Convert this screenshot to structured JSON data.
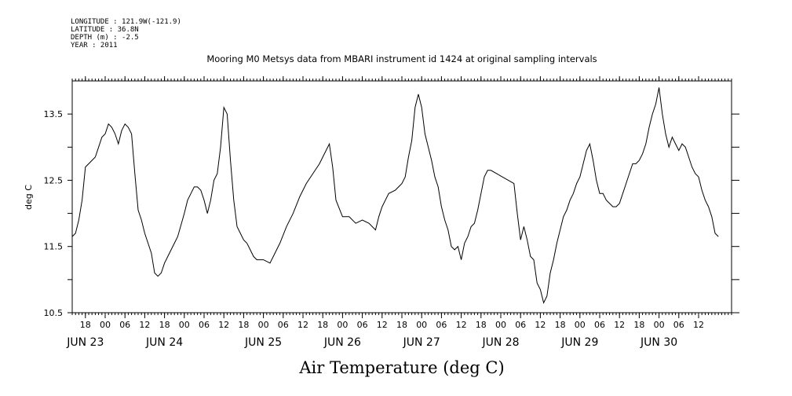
{
  "header": {
    "longitude": "LONGITUDE : 121.9W(-121.9)",
    "latitude": "LATITUDE : 36.8N",
    "depth": "DEPTH (m) : -2.5",
    "year": "YEAR : 2011"
  },
  "chart_data": {
    "type": "line",
    "title": "Mooring M0 Metsys data from MBARI instrument id 1424 at original sampling intervals",
    "xlabel": "Air Temperature (deg C)",
    "ylabel": "deg C",
    "ylim": [
      10.5,
      14.0
    ],
    "xlim": [
      "2011-06-22 14:00",
      "2011-06-30 22:00"
    ],
    "yticks": [
      {
        "value": 10.5,
        "label": "10.5"
      },
      {
        "value": 11.0,
        "label": ""
      },
      {
        "value": 11.5,
        "label": "11.5"
      },
      {
        "value": 12.0,
        "label": ""
      },
      {
        "value": 12.5,
        "label": "12.5"
      },
      {
        "value": 13.0,
        "label": ""
      },
      {
        "value": 13.5,
        "label": "13.5"
      }
    ],
    "hour_ticks": [
      {
        "t": "2011-06-22 18:00",
        "label": "18"
      },
      {
        "t": "2011-06-23 00:00",
        "label": "00"
      },
      {
        "t": "2011-06-23 06:00",
        "label": "06"
      },
      {
        "t": "2011-06-23 12:00",
        "label": "12"
      },
      {
        "t": "2011-06-23 18:00",
        "label": "18"
      },
      {
        "t": "2011-06-24 00:00",
        "label": "00"
      },
      {
        "t": "2011-06-24 06:00",
        "label": "06"
      },
      {
        "t": "2011-06-24 12:00",
        "label": "12"
      },
      {
        "t": "2011-06-24 18:00",
        "label": "18"
      },
      {
        "t": "2011-06-25 00:00",
        "label": "00"
      },
      {
        "t": "2011-06-25 06:00",
        "label": "06"
      },
      {
        "t": "2011-06-25 12:00",
        "label": "12"
      },
      {
        "t": "2011-06-25 18:00",
        "label": "18"
      },
      {
        "t": "2011-06-26 00:00",
        "label": "00"
      },
      {
        "t": "2011-06-26 06:00",
        "label": "06"
      },
      {
        "t": "2011-06-26 12:00",
        "label": "12"
      },
      {
        "t": "2011-06-26 18:00",
        "label": "18"
      },
      {
        "t": "2011-06-27 00:00",
        "label": "00"
      },
      {
        "t": "2011-06-27 06:00",
        "label": "06"
      },
      {
        "t": "2011-06-27 12:00",
        "label": "12"
      },
      {
        "t": "2011-06-27 18:00",
        "label": "18"
      },
      {
        "t": "2011-06-28 00:00",
        "label": "00"
      },
      {
        "t": "2011-06-28 06:00",
        "label": "06"
      },
      {
        "t": "2011-06-28 12:00",
        "label": "12"
      },
      {
        "t": "2011-06-28 18:00",
        "label": "18"
      },
      {
        "t": "2011-06-29 00:00",
        "label": "00"
      },
      {
        "t": "2011-06-29 06:00",
        "label": "06"
      },
      {
        "t": "2011-06-29 12:00",
        "label": "12"
      },
      {
        "t": "2011-06-29 18:00",
        "label": "18"
      },
      {
        "t": "2011-06-30 00:00",
        "label": "00"
      },
      {
        "t": "2011-06-30 06:00",
        "label": "06"
      },
      {
        "t": "2011-06-30 12:00",
        "label": "12"
      }
    ],
    "day_labels": [
      {
        "t": "2011-06-22 18:00",
        "label": "JUN 23"
      },
      {
        "t": "2011-06-23 18:00",
        "label": "JUN 24"
      },
      {
        "t": "2011-06-25 00:00",
        "label": "JUN 25"
      },
      {
        "t": "2011-06-26 00:00",
        "label": "JUN 26"
      },
      {
        "t": "2011-06-27 00:00",
        "label": "JUN 27"
      },
      {
        "t": "2011-06-28 00:00",
        "label": "JUN 28"
      },
      {
        "t": "2011-06-29 00:00",
        "label": "JUN 29"
      },
      {
        "t": "2011-06-30 00:00",
        "label": "JUN 30"
      }
    ],
    "series": [
      {
        "color": "#000000",
        "points": [
          [
            "2011-06-22 14:00",
            11.65
          ],
          [
            "2011-06-22 15:00",
            11.7
          ],
          [
            "2011-06-22 16:00",
            11.9
          ],
          [
            "2011-06-22 17:00",
            12.2
          ],
          [
            "2011-06-22 18:00",
            12.7
          ],
          [
            "2011-06-22 19:00",
            12.75
          ],
          [
            "2011-06-22 20:00",
            12.8
          ],
          [
            "2011-06-22 21:00",
            12.85
          ],
          [
            "2011-06-22 22:00",
            13.0
          ],
          [
            "2011-06-22 23:00",
            13.15
          ],
          [
            "2011-06-23 00:00",
            13.2
          ],
          [
            "2011-06-23 01:00",
            13.35
          ],
          [
            "2011-06-23 02:00",
            13.3
          ],
          [
            "2011-06-23 03:00",
            13.2
          ],
          [
            "2011-06-23 04:00",
            13.05
          ],
          [
            "2011-06-23 05:00",
            13.25
          ],
          [
            "2011-06-23 06:00",
            13.35
          ],
          [
            "2011-06-23 07:00",
            13.3
          ],
          [
            "2011-06-23 08:00",
            13.2
          ],
          [
            "2011-06-23 09:00",
            12.6
          ],
          [
            "2011-06-23 10:00",
            12.05
          ],
          [
            "2011-06-23 11:00",
            11.9
          ],
          [
            "2011-06-23 12:00",
            11.7
          ],
          [
            "2011-06-23 13:00",
            11.55
          ],
          [
            "2011-06-23 14:00",
            11.4
          ],
          [
            "2011-06-23 15:00",
            11.1
          ],
          [
            "2011-06-23 16:00",
            11.05
          ],
          [
            "2011-06-23 17:00",
            11.1
          ],
          [
            "2011-06-23 18:00",
            11.25
          ],
          [
            "2011-06-23 19:00",
            11.35
          ],
          [
            "2011-06-23 20:00",
            11.45
          ],
          [
            "2011-06-23 21:00",
            11.55
          ],
          [
            "2011-06-23 22:00",
            11.65
          ],
          [
            "2011-06-24 00:00",
            12.0
          ],
          [
            "2011-06-24 01:00",
            12.2
          ],
          [
            "2011-06-24 02:00",
            12.3
          ],
          [
            "2011-06-24 03:00",
            12.4
          ],
          [
            "2011-06-24 04:00",
            12.4
          ],
          [
            "2011-06-24 05:00",
            12.35
          ],
          [
            "2011-06-24 06:00",
            12.2
          ],
          [
            "2011-06-24 07:00",
            12.0
          ],
          [
            "2011-06-24 08:00",
            12.2
          ],
          [
            "2011-06-24 09:00",
            12.5
          ],
          [
            "2011-06-24 10:00",
            12.6
          ],
          [
            "2011-06-24 11:00",
            13.0
          ],
          [
            "2011-06-24 12:00",
            13.6
          ],
          [
            "2011-06-24 13:00",
            13.5
          ],
          [
            "2011-06-24 14:00",
            12.8
          ],
          [
            "2011-06-24 15:00",
            12.2
          ],
          [
            "2011-06-24 16:00",
            11.8
          ],
          [
            "2011-06-24 17:00",
            11.7
          ],
          [
            "2011-06-24 18:00",
            11.6
          ],
          [
            "2011-06-24 19:00",
            11.55
          ],
          [
            "2011-06-24 20:00",
            11.45
          ],
          [
            "2011-06-24 21:00",
            11.35
          ],
          [
            "2011-06-24 22:00",
            11.3
          ],
          [
            "2011-06-25 00:00",
            11.3
          ],
          [
            "2011-06-25 02:00",
            11.25
          ],
          [
            "2011-06-25 03:00",
            11.35
          ],
          [
            "2011-06-25 05:00",
            11.55
          ],
          [
            "2011-06-25 07:00",
            11.8
          ],
          [
            "2011-06-25 09:00",
            12.0
          ],
          [
            "2011-06-25 11:00",
            12.25
          ],
          [
            "2011-06-25 13:00",
            12.45
          ],
          [
            "2011-06-25 15:00",
            12.6
          ],
          [
            "2011-06-25 17:00",
            12.75
          ],
          [
            "2011-06-25 18:00",
            12.85
          ],
          [
            "2011-06-25 19:00",
            12.95
          ],
          [
            "2011-06-25 20:00",
            13.05
          ],
          [
            "2011-06-25 21:00",
            12.7
          ],
          [
            "2011-06-25 22:00",
            12.2
          ],
          [
            "2011-06-26 00:00",
            11.95
          ],
          [
            "2011-06-26 02:00",
            11.95
          ],
          [
            "2011-06-26 04:00",
            11.85
          ],
          [
            "2011-06-26 06:00",
            11.9
          ],
          [
            "2011-06-26 08:00",
            11.85
          ],
          [
            "2011-06-26 10:00",
            11.75
          ],
          [
            "2011-06-26 11:00",
            11.95
          ],
          [
            "2011-06-26 12:00",
            12.1
          ],
          [
            "2011-06-26 14:00",
            12.3
          ],
          [
            "2011-06-26 16:00",
            12.35
          ],
          [
            "2011-06-26 18:00",
            12.45
          ],
          [
            "2011-06-26 19:00",
            12.55
          ],
          [
            "2011-06-26 20:00",
            12.85
          ],
          [
            "2011-06-26 21:00",
            13.1
          ],
          [
            "2011-06-26 22:00",
            13.6
          ],
          [
            "2011-06-26 23:00",
            13.8
          ],
          [
            "2011-06-27 00:00",
            13.6
          ],
          [
            "2011-06-27 01:00",
            13.2
          ],
          [
            "2011-06-27 02:00",
            13.0
          ],
          [
            "2011-06-27 03:00",
            12.8
          ],
          [
            "2011-06-27 04:00",
            12.55
          ],
          [
            "2011-06-27 05:00",
            12.4
          ],
          [
            "2011-06-27 06:00",
            12.1
          ],
          [
            "2011-06-27 07:00",
            11.9
          ],
          [
            "2011-06-27 08:00",
            11.75
          ],
          [
            "2011-06-27 09:00",
            11.5
          ],
          [
            "2011-06-27 10:00",
            11.45
          ],
          [
            "2011-06-27 11:00",
            11.5
          ],
          [
            "2011-06-27 12:00",
            11.3
          ],
          [
            "2011-06-27 13:00",
            11.55
          ],
          [
            "2011-06-27 14:00",
            11.65
          ],
          [
            "2011-06-27 15:00",
            11.8
          ],
          [
            "2011-06-27 16:00",
            11.85
          ],
          [
            "2011-06-27 17:00",
            12.05
          ],
          [
            "2011-06-27 18:00",
            12.3
          ],
          [
            "2011-06-27 19:00",
            12.55
          ],
          [
            "2011-06-27 20:00",
            12.65
          ],
          [
            "2011-06-27 21:00",
            12.65
          ],
          [
            "2011-06-28 04:00",
            12.45
          ],
          [
            "2011-06-28 05:00",
            12.0
          ],
          [
            "2011-06-28 06:00",
            11.6
          ],
          [
            "2011-06-28 07:00",
            11.8
          ],
          [
            "2011-06-28 08:00",
            11.6
          ],
          [
            "2011-06-28 09:00",
            11.35
          ],
          [
            "2011-06-28 10:00",
            11.3
          ],
          [
            "2011-06-28 11:00",
            10.95
          ],
          [
            "2011-06-28 12:00",
            10.85
          ],
          [
            "2011-06-28 13:00",
            10.65
          ],
          [
            "2011-06-28 14:00",
            10.75
          ],
          [
            "2011-06-28 15:00",
            11.1
          ],
          [
            "2011-06-28 16:00",
            11.3
          ],
          [
            "2011-06-28 17:00",
            11.55
          ],
          [
            "2011-06-28 18:00",
            11.75
          ],
          [
            "2011-06-28 19:00",
            11.95
          ],
          [
            "2011-06-28 20:00",
            12.05
          ],
          [
            "2011-06-28 21:00",
            12.2
          ],
          [
            "2011-06-28 22:00",
            12.3
          ],
          [
            "2011-06-28 23:00",
            12.45
          ],
          [
            "2011-06-29 00:00",
            12.55
          ],
          [
            "2011-06-29 01:00",
            12.75
          ],
          [
            "2011-06-29 02:00",
            12.95
          ],
          [
            "2011-06-29 03:00",
            13.05
          ],
          [
            "2011-06-29 04:00",
            12.8
          ],
          [
            "2011-06-29 05:00",
            12.5
          ],
          [
            "2011-06-29 06:00",
            12.3
          ],
          [
            "2011-06-29 07:00",
            12.3
          ],
          [
            "2011-06-29 08:00",
            12.2
          ],
          [
            "2011-06-29 09:00",
            12.15
          ],
          [
            "2011-06-29 10:00",
            12.1
          ],
          [
            "2011-06-29 11:00",
            12.1
          ],
          [
            "2011-06-29 12:00",
            12.15
          ],
          [
            "2011-06-29 13:00",
            12.3
          ],
          [
            "2011-06-29 14:00",
            12.45
          ],
          [
            "2011-06-29 15:00",
            12.6
          ],
          [
            "2011-06-29 16:00",
            12.75
          ],
          [
            "2011-06-29 17:00",
            12.75
          ],
          [
            "2011-06-29 18:00",
            12.8
          ],
          [
            "2011-06-29 19:00",
            12.9
          ],
          [
            "2011-06-29 20:00",
            13.05
          ],
          [
            "2011-06-29 21:00",
            13.3
          ],
          [
            "2011-06-29 22:00",
            13.5
          ],
          [
            "2011-06-29 23:00",
            13.65
          ],
          [
            "2011-06-30 00:00",
            13.9
          ],
          [
            "2011-06-30 01:00",
            13.5
          ],
          [
            "2011-06-30 02:00",
            13.2
          ],
          [
            "2011-06-30 03:00",
            13.0
          ],
          [
            "2011-06-30 04:00",
            13.15
          ],
          [
            "2011-06-30 05:00",
            13.05
          ],
          [
            "2011-06-30 06:00",
            12.95
          ],
          [
            "2011-06-30 07:00",
            13.05
          ],
          [
            "2011-06-30 08:00",
            13.0
          ],
          [
            "2011-06-30 09:00",
            12.85
          ],
          [
            "2011-06-30 10:00",
            12.7
          ],
          [
            "2011-06-30 11:00",
            12.6
          ],
          [
            "2011-06-30 12:00",
            12.55
          ],
          [
            "2011-06-30 13:00",
            12.35
          ],
          [
            "2011-06-30 14:00",
            12.2
          ],
          [
            "2011-06-30 15:00",
            12.1
          ],
          [
            "2011-06-30 16:00",
            11.95
          ],
          [
            "2011-06-30 17:00",
            11.7
          ],
          [
            "2011-06-30 18:00",
            11.65
          ]
        ]
      }
    ]
  }
}
